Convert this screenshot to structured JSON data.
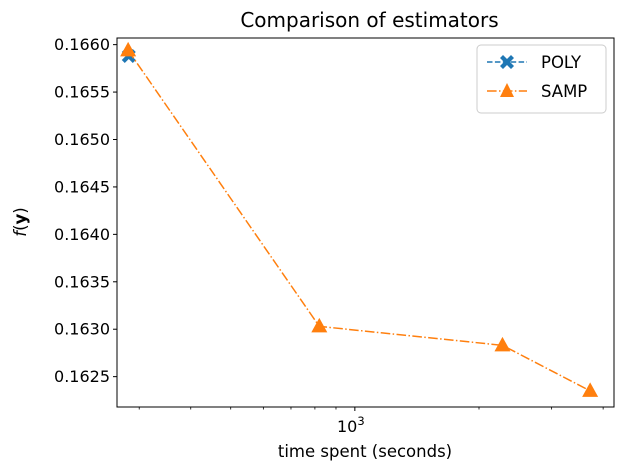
{
  "chart_data": {
    "type": "line",
    "title": "Comparison of estimators",
    "xlabel": "time spent (seconds)",
    "ylabel_func": "f",
    "ylabel_open": "(",
    "ylabel_var": "y",
    "ylabel_close": ")",
    "x_scale": "log",
    "xlim": [
      265,
      4250
    ],
    "ylim": [
      0.16218,
      0.16607
    ],
    "x_ticks": [
      {
        "value": 1000,
        "base": "10",
        "exp": "3"
      }
    ],
    "y_ticks": [
      "0.1625",
      "0.1630",
      "0.1635",
      "0.1640",
      "0.1645",
      "0.1650",
      "0.1655",
      "0.1660"
    ],
    "grid": false,
    "legend_position": "top-right",
    "series": [
      {
        "name": "POLY",
        "color": "#1f77b4",
        "marker": "x-filled",
        "linestyle": "dashed",
        "x": [
          283
        ],
        "y": [
          0.16588
        ]
      },
      {
        "name": "SAMP",
        "color": "#ff7f0e",
        "marker": "triangle-up",
        "linestyle": "dashdot",
        "x": [
          282,
          820,
          2280,
          3720
        ],
        "y": [
          0.16594,
          0.16303,
          0.16283,
          0.16235
        ]
      }
    ]
  }
}
